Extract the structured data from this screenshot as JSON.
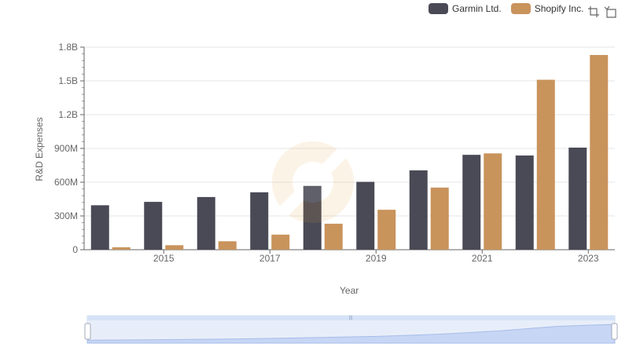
{
  "legend": {
    "items": [
      {
        "label": "Garmin Ltd.",
        "color": "#4a4a56"
      },
      {
        "label": "Shopify Inc.",
        "color": "#c9935c"
      }
    ]
  },
  "toolbox": {
    "icons": [
      "zoom-icon",
      "restore-icon"
    ]
  },
  "chart_data": {
    "type": "bar",
    "title": "",
    "xlabel": "Year",
    "ylabel": "R&D Expenses",
    "categories": [
      "2014",
      "2015",
      "2016",
      "2017",
      "2018",
      "2019",
      "2020",
      "2021",
      "2022",
      "2023"
    ],
    "x_tick_labels": [
      "2015",
      "2017",
      "2019",
      "2021",
      "2023"
    ],
    "y_ticks": [
      "0",
      "300M",
      "600M",
      "900M",
      "1.2B",
      "1.5B",
      "1.8B"
    ],
    "ylim": [
      0,
      1800000000
    ],
    "grid": true,
    "legend_position": "top-right",
    "series": [
      {
        "name": "Garmin Ltd.",
        "color": "#4a4a56",
        "values": [
          395000000,
          425000000,
          468000000,
          510000000,
          567000000,
          603000000,
          705000000,
          843000000,
          837000000,
          907000000
        ]
      },
      {
        "name": "Shopify Inc.",
        "color": "#c9935c",
        "values": [
          22000000,
          40000000,
          75000000,
          134000000,
          231000000,
          355000000,
          552000000,
          856000000,
          1510000000,
          1730000000
        ]
      }
    ]
  }
}
